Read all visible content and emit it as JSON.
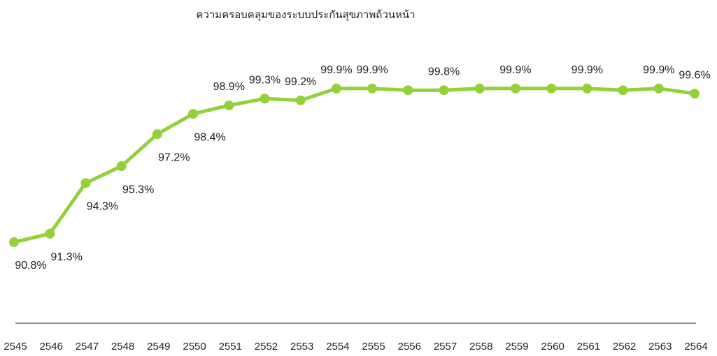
{
  "chart_data": {
    "type": "line",
    "title": "ความครอบคลุมของระบบประกันสุขภาพถ้วนหน้า",
    "categories": [
      "2545",
      "2546",
      "2547",
      "2548",
      "2549",
      "2550",
      "2551",
      "2552",
      "2553",
      "2554",
      "2555",
      "2556",
      "2557",
      "2558",
      "2559",
      "2560",
      "2561",
      "2562",
      "2563",
      "2564"
    ],
    "series": [
      {
        "name": "ความครอบคลุม",
        "color": "#92d13a",
        "values": [
          90.8,
          91.3,
          94.3,
          95.3,
          97.2,
          98.4,
          98.9,
          99.3,
          99.2,
          99.9,
          99.9,
          99.8,
          99.8,
          99.9,
          99.9,
          99.9,
          99.9,
          99.8,
          99.9,
          99.6
        ],
        "value_labels": [
          "90.8%",
          "91.3%",
          "94.3%",
          "95.3%",
          "97.2%",
          "98.4%",
          "98.9%",
          "99.3%",
          "99.2%",
          "99.9%",
          "99.9%",
          null,
          "99.8%",
          null,
          "99.9%",
          null,
          "99.9%",
          null,
          "99.9%",
          "99.6%"
        ]
      }
    ],
    "ylim": [
      86,
      102
    ],
    "legend": false,
    "grid": false
  }
}
